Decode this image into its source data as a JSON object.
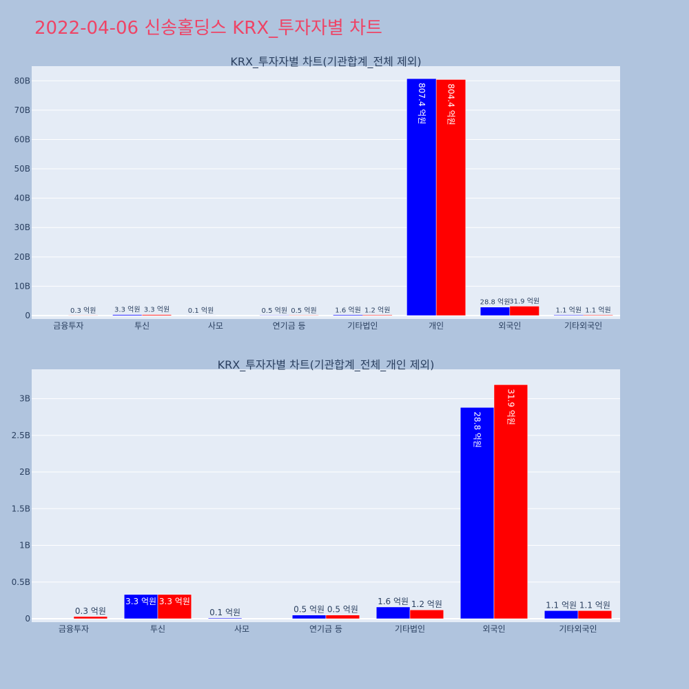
{
  "title": "2022-04-06 신송홀딩스 KRX_투자자별 차트",
  "colors": {
    "series_a": "#0000ff",
    "series_b": "#ff0000",
    "plot_bg": "#e5ecf6",
    "page_bg": "#b0c4de",
    "title": "#ee4466"
  },
  "chart_data": [
    {
      "type": "bar",
      "title": "KRX_투자자별 차트(기관합계_전체 제외)",
      "categories": [
        "금융투자",
        "투신",
        "사모",
        "연기금 등",
        "기타법인",
        "개인",
        "외국인",
        "기타외국인"
      ],
      "ylim": [
        0,
        85
      ],
      "yticks": [
        0,
        10,
        20,
        30,
        40,
        50,
        60,
        70,
        80
      ],
      "ytick_labels": [
        "0",
        "10B",
        "20B",
        "30B",
        "40B",
        "50B",
        "60B",
        "70B",
        "80B"
      ],
      "grid": true,
      "series": [
        {
          "values": [
            0,
            0.33,
            0.01,
            0.05,
            0.16,
            80.74,
            2.88,
            0.11
          ],
          "labels": [
            "",
            "3.3 억원",
            "0.1 억원",
            "0.5 억원",
            "1.6 억원",
            "807.4 억원",
            "28.8 억원",
            "1.1 억원"
          ]
        },
        {
          "values": [
            0.03,
            0.33,
            0,
            0.05,
            0.12,
            80.44,
            3.19,
            0.11
          ],
          "labels": [
            "0.3 억원",
            "3.3 억원",
            "",
            "0.5 억원",
            "1.2 억원",
            "804.4 억원",
            "31.9 억원",
            "1.1 억원"
          ]
        }
      ]
    },
    {
      "type": "bar",
      "title": "KRX_투자자별 차트(기관합계_전체_개인 제외)",
      "categories": [
        "금융투자",
        "투신",
        "사모",
        "연기금 등",
        "기타법인",
        "외국인",
        "기타외국인"
      ],
      "ylim": [
        0,
        3.4
      ],
      "yticks": [
        0,
        0.5,
        1,
        1.5,
        2,
        2.5,
        3
      ],
      "ytick_labels": [
        "0",
        "0.5B",
        "1B",
        "1.5B",
        "2B",
        "2.5B",
        "3B"
      ],
      "grid": true,
      "series": [
        {
          "values": [
            0,
            0.33,
            0.01,
            0.05,
            0.16,
            2.88,
            0.11
          ],
          "labels": [
            "",
            "3.3 억원",
            "0.1 억원",
            "0.5 억원",
            "1.6 억원",
            "28.8 억원",
            "1.1 억원"
          ]
        },
        {
          "values": [
            0.03,
            0.33,
            0,
            0.05,
            0.12,
            3.19,
            0.11
          ],
          "labels": [
            "0.3 억원",
            "3.3 억원",
            "",
            "0.5 억원",
            "1.2 억원",
            "31.9 억원",
            "1.1 억원"
          ]
        }
      ]
    }
  ]
}
